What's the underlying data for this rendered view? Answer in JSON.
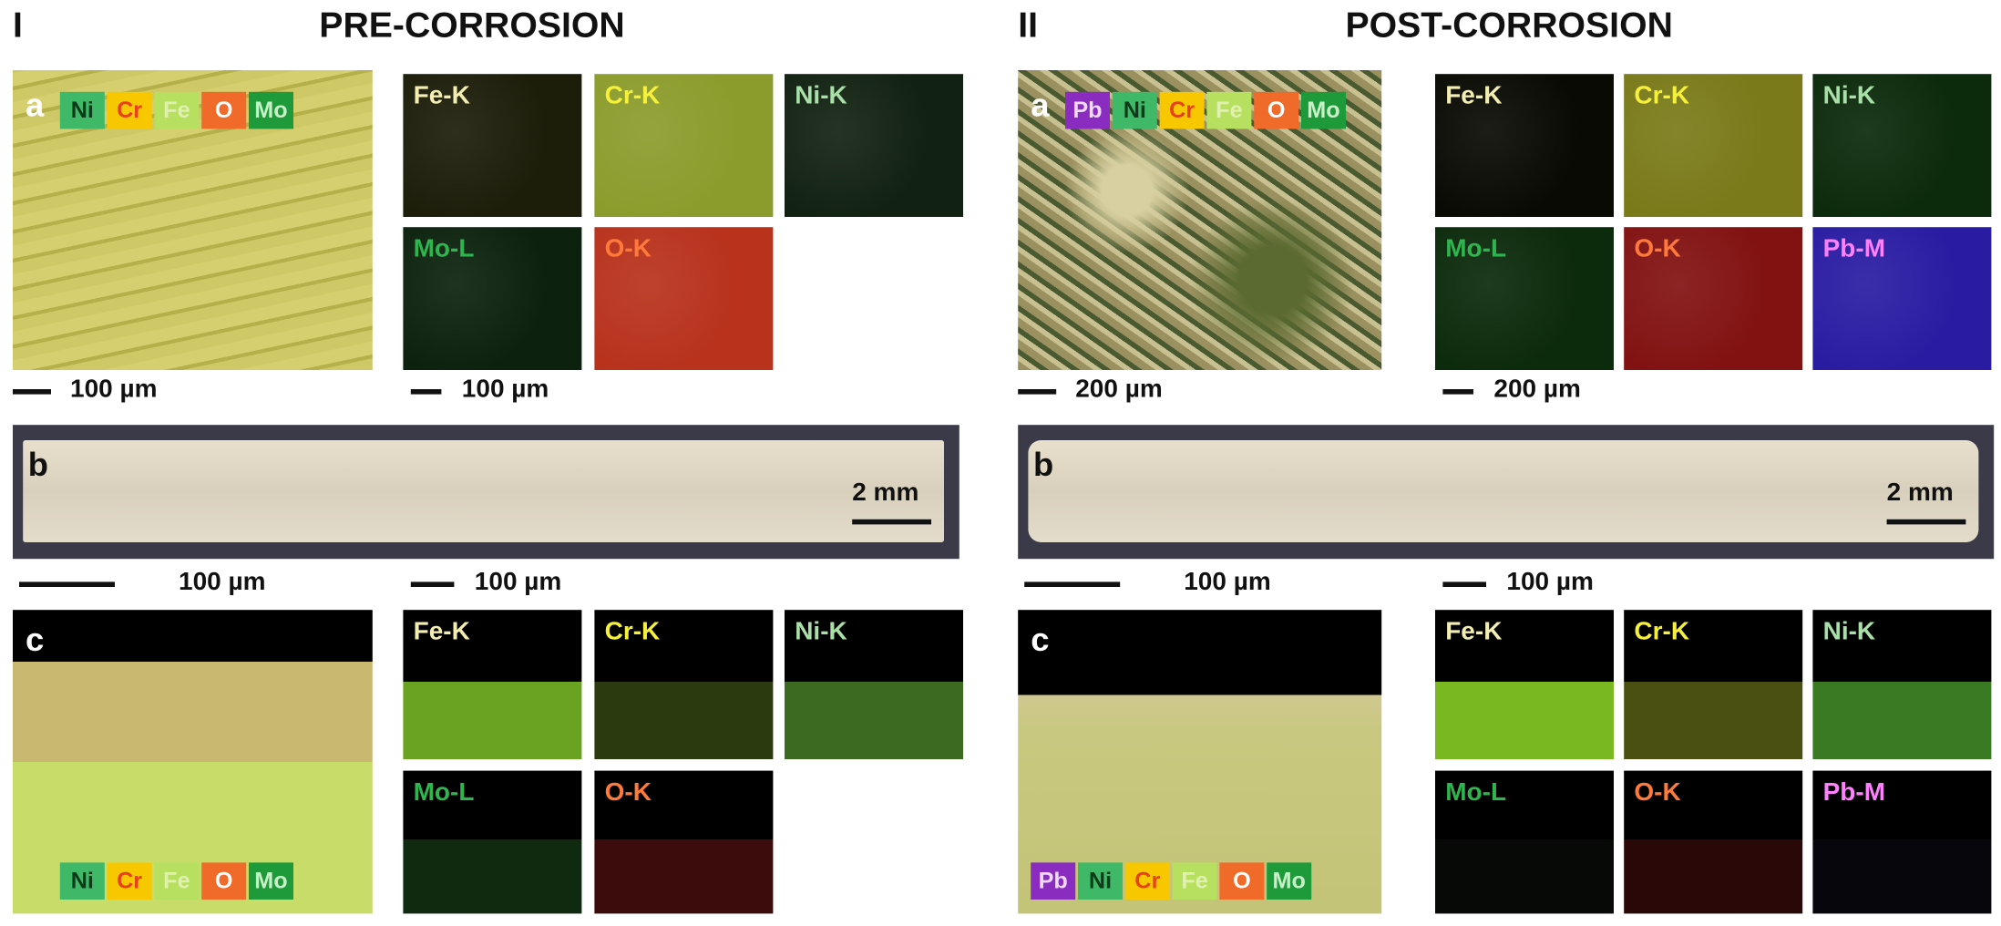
{
  "sections": [
    {
      "numeral": "I",
      "title": "PRE-CORROSION",
      "a": {
        "label": "a",
        "scale": "100 µm",
        "maps_scale": "100 µm",
        "legend": [
          {
            "label": "Ni",
            "bg": "#3fb868",
            "color": "#0d3a18"
          },
          {
            "label": "Cr",
            "bg": "#f7c800",
            "color": "#e8401a"
          },
          {
            "label": "Fe",
            "bg": "#b8e060",
            "color": "#e0f0b0"
          },
          {
            "label": "O",
            "bg": "#f06a2a",
            "color": "#ffffff"
          },
          {
            "label": "Mo",
            "bg": "#1e9a3a",
            "color": "#c8f0c8"
          }
        ],
        "maps": [
          {
            "label": "Fe-K",
            "color": "#f3eeb0",
            "fill": "#1c1e0a"
          },
          {
            "label": "Cr-K",
            "color": "#f6f03a",
            "fill": "#8c9c2c"
          },
          {
            "label": "Ni-K",
            "color": "#a8e0a8",
            "fill": "#122212"
          },
          {
            "label": "Mo-L",
            "color": "#2fb54f",
            "fill": "#0c220e"
          },
          {
            "label": "O-K",
            "color": "#ff7a3a",
            "fill": "#b8321c"
          }
        ]
      },
      "b": {
        "label": "b",
        "scale": "2 mm"
      },
      "c": {
        "label": "c",
        "scale": "100 µm",
        "maps_scale": "100 µm",
        "legend": [
          {
            "label": "Ni",
            "bg": "#3fb868",
            "color": "#0d3a18"
          },
          {
            "label": "Cr",
            "bg": "#f7c800",
            "color": "#e8401a"
          },
          {
            "label": "Fe",
            "bg": "#b8e060",
            "color": "#e0f0b0"
          },
          {
            "label": "O",
            "bg": "#f06a2a",
            "color": "#ffffff"
          },
          {
            "label": "Mo",
            "bg": "#1e9a3a",
            "color": "#c8f0c8"
          }
        ],
        "maps": [
          {
            "label": "Fe-K",
            "color": "#f3eeb0",
            "fill": "#6aa222"
          },
          {
            "label": "Cr-K",
            "color": "#f6f03a",
            "fill": "#2c3a10"
          },
          {
            "label": "Ni-K",
            "color": "#a8e0a8",
            "fill": "#3c6a20"
          },
          {
            "label": "Mo-L",
            "color": "#2fb54f",
            "fill": "#102a10"
          },
          {
            "label": "O-K",
            "color": "#ff7a3a",
            "fill": "#3c0c0c"
          }
        ]
      }
    },
    {
      "numeral": "II",
      "title": "POST-CORROSION",
      "a": {
        "label": "a",
        "scale": "200 µm",
        "maps_scale": "200 µm",
        "legend": [
          {
            "label": "Pb",
            "bg": "#8a2cc0",
            "color": "#f0d8ff"
          },
          {
            "label": "Ni",
            "bg": "#3fb868",
            "color": "#0d3a18"
          },
          {
            "label": "Cr",
            "bg": "#f7c800",
            "color": "#e8401a"
          },
          {
            "label": "Fe",
            "bg": "#b8e060",
            "color": "#e0f0b0"
          },
          {
            "label": "O",
            "bg": "#f06a2a",
            "color": "#ffffff"
          },
          {
            "label": "Mo",
            "bg": "#1e9a3a",
            "color": "#c8f0c8"
          }
        ],
        "maps": [
          {
            "label": "Fe-K",
            "color": "#f3eeb0",
            "fill": "#0a0a04"
          },
          {
            "label": "Cr-K",
            "color": "#f6f03a",
            "fill": "#7a7a1a"
          },
          {
            "label": "Ni-K",
            "color": "#a8e0a8",
            "fill": "#0c2a0c"
          },
          {
            "label": "Mo-L",
            "color": "#2fb54f",
            "fill": "#0c2a0c"
          },
          {
            "label": "O-K",
            "color": "#ff7a3a",
            "fill": "#821212"
          },
          {
            "label": "Pb-M",
            "color": "#ff80ff",
            "fill": "#2a1ca2"
          }
        ]
      },
      "b": {
        "label": "b",
        "scale": "2 mm"
      },
      "c": {
        "label": "c",
        "scale": "100 µm",
        "maps_scale": "100 µm",
        "legend": [
          {
            "label": "Pb",
            "bg": "#8a2cc0",
            "color": "#f0d8ff"
          },
          {
            "label": "Ni",
            "bg": "#3fb868",
            "color": "#0d3a18"
          },
          {
            "label": "Cr",
            "bg": "#f7c800",
            "color": "#e8401a"
          },
          {
            "label": "Fe",
            "bg": "#b8e060",
            "color": "#e0f0b0"
          },
          {
            "label": "O",
            "bg": "#f06a2a",
            "color": "#ffffff"
          },
          {
            "label": "Mo",
            "bg": "#1e9a3a",
            "color": "#c8f0c8"
          }
        ],
        "maps": [
          {
            "label": "Fe-K",
            "color": "#f3eeb0",
            "fill": "#7ab822"
          },
          {
            "label": "Cr-K",
            "color": "#f6f03a",
            "fill": "#4a5012"
          },
          {
            "label": "Ni-K",
            "color": "#a8e0a8",
            "fill": "#3a7a22"
          },
          {
            "label": "Mo-L",
            "color": "#2fb54f",
            "fill": "#060906"
          },
          {
            "label": "O-K",
            "color": "#ff7a3a",
            "fill": "#2a0808"
          },
          {
            "label": "Pb-M",
            "color": "#ff80ff",
            "fill": "#06060c"
          }
        ]
      }
    }
  ]
}
